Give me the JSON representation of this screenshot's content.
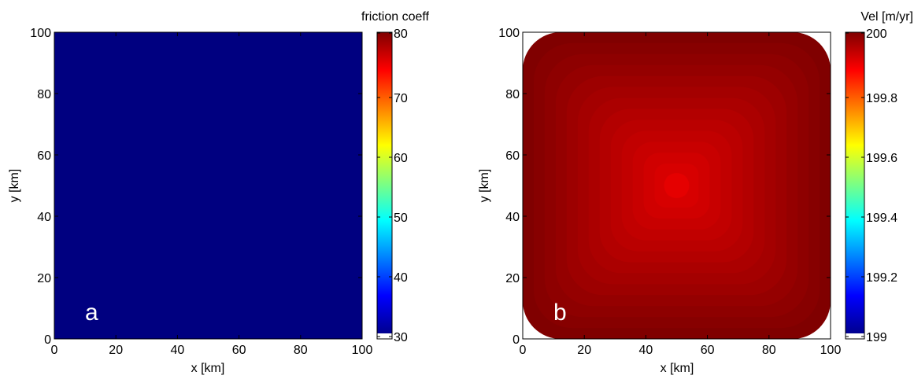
{
  "chart_data": [
    {
      "type": "heatmap",
      "panel_label": "a",
      "xlabel": "x [km]",
      "ylabel": "y [km]",
      "xlim": [
        0,
        100
      ],
      "ylim": [
        0,
        100
      ],
      "xticks": [
        "0",
        "20",
        "40",
        "60",
        "80",
        "100"
      ],
      "yticks": [
        "0",
        "20",
        "40",
        "60",
        "80",
        "100"
      ],
      "field": {
        "kind": "uniform",
        "value": 30
      },
      "colorbar": {
        "label": "friction coeff",
        "colormap": "jet",
        "range": [
          30,
          80
        ],
        "ticks": [
          "30",
          "40",
          "50",
          "60",
          "70",
          "80"
        ],
        "bottom_swatch": "#ffffff"
      }
    },
    {
      "type": "heatmap",
      "panel_label": "b",
      "xlabel": "x [km]",
      "ylabel": "y [km]",
      "xlim": [
        0,
        100
      ],
      "ylim": [
        0,
        100
      ],
      "xticks": [
        "0",
        "20",
        "40",
        "60",
        "80",
        "100"
      ],
      "yticks": [
        "0",
        "20",
        "40",
        "60",
        "80",
        "100"
      ],
      "field": {
        "kind": "centered-basin",
        "center": [
          50,
          50
        ],
        "center_value": 199.9,
        "edge_value": 200.0,
        "contour_levels": 14
      },
      "colorbar": {
        "label": "Vel [m/yr]",
        "colormap": "jet",
        "range": [
          199,
          200
        ],
        "ticks": [
          "199",
          "199.2",
          "199.4",
          "199.6",
          "199.8",
          "200"
        ],
        "bottom_swatch": "#ffffff"
      }
    }
  ],
  "colors": {
    "jet_stops": [
      "#00008f",
      "#0000ff",
      "#00ffff",
      "#ffff00",
      "#ff0000",
      "#800000"
    ]
  }
}
